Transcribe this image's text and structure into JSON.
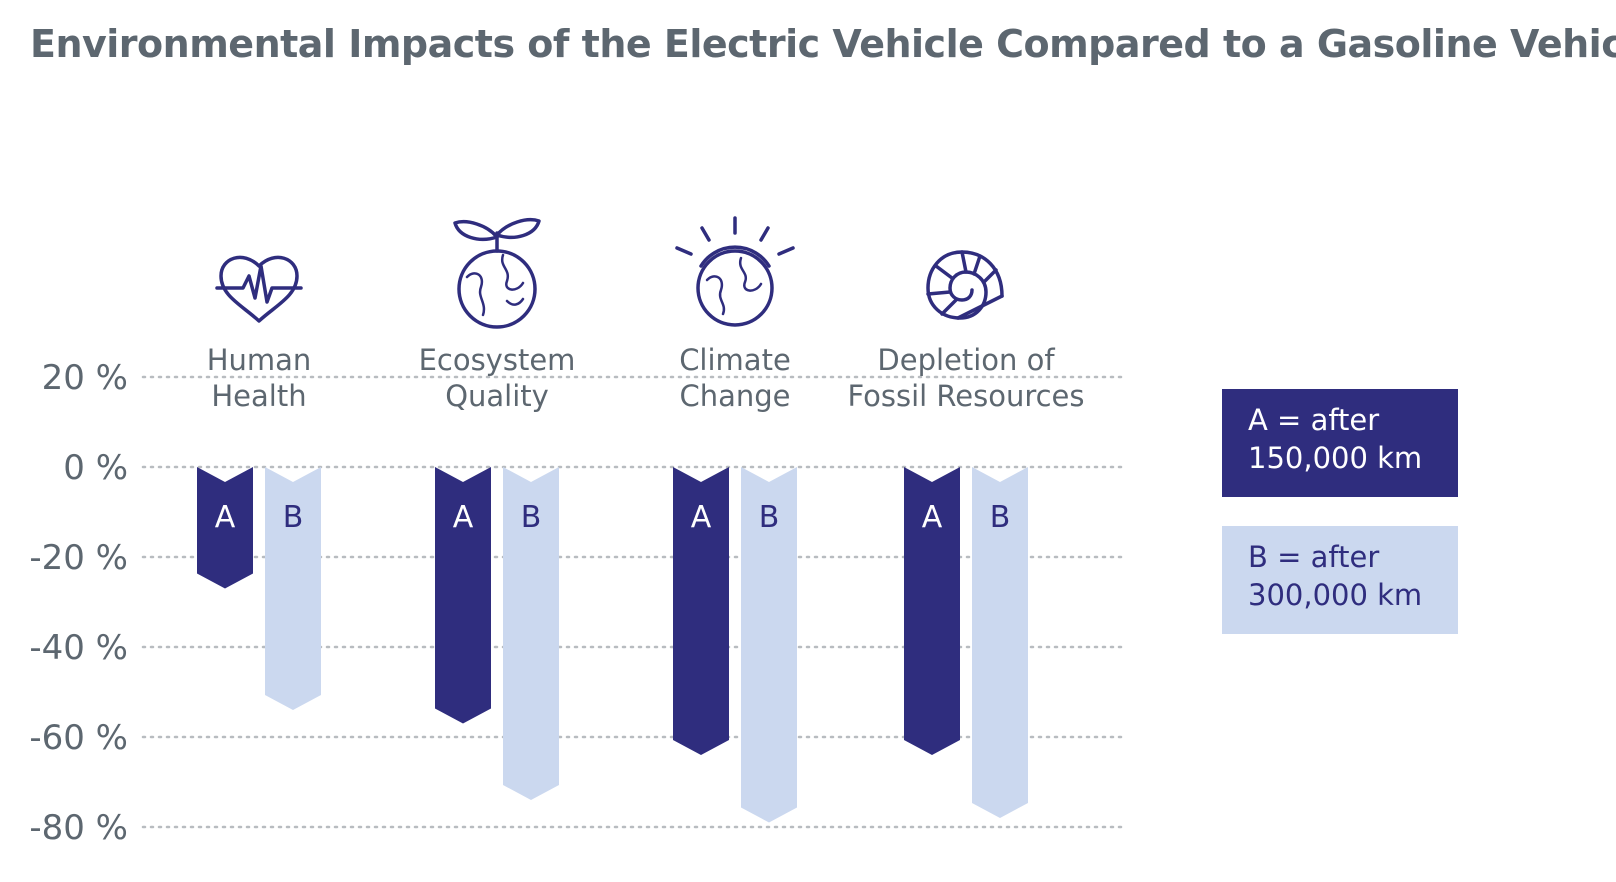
{
  "title": "Environmental Impacts of the Electric Vehicle Compared to a Gasoline Vehicle",
  "colors": {
    "seriesA": "#2f2d7e",
    "seriesB": "#cbd8ef",
    "text": "#5d6770",
    "grid": "#b8bcc0"
  },
  "chart_data": {
    "type": "bar",
    "title": "Environmental Impacts of the Electric Vehicle Compared to a Gasoline Vehicle",
    "ylim": [
      -80,
      20
    ],
    "yticks": [
      20,
      0,
      -20,
      -40,
      -60,
      -80
    ],
    "ytick_labels": [
      "20 %",
      "0 %",
      "-20 %",
      "-40 %",
      "-60 %",
      "-80 %"
    ],
    "categories": [
      {
        "label_lines": [
          "Human",
          "Health"
        ],
        "icon": "heart-pulse-icon"
      },
      {
        "label_lines": [
          "Ecosystem",
          "Quality"
        ],
        "icon": "globe-plant-icon"
      },
      {
        "label_lines": [
          "Climate",
          "Change"
        ],
        "icon": "globe-sun-icon"
      },
      {
        "label_lines": [
          "Depletion of",
          "Fossil Resources"
        ],
        "icon": "ammonite-shell-icon"
      }
    ],
    "series": [
      {
        "name": "A",
        "values": [
          -27,
          -57,
          -64,
          -64
        ]
      },
      {
        "name": "B",
        "values": [
          -54,
          -74,
          -79,
          -78
        ]
      }
    ],
    "legend": [
      {
        "lines": [
          "A = after",
          "150,000 km"
        ]
      },
      {
        "lines": [
          "B = after",
          "300,000 km"
        ]
      }
    ],
    "legend_position": "right"
  }
}
